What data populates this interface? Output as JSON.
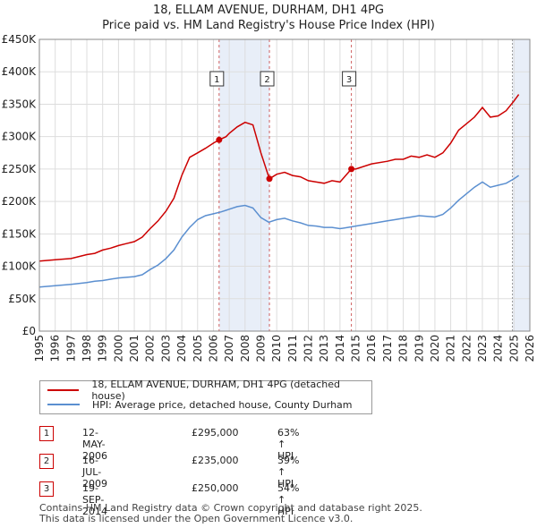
{
  "title": {
    "line1": "18, ELLAM AVENUE, DURHAM, DH1 4PG",
    "line2": "Price paid vs. HM Land Registry's House Price Index (HPI)"
  },
  "colors": {
    "property_line": "#cc0000",
    "hpi_line": "#5b8fd0",
    "shade": "#e8eef8",
    "vline": "#d06060",
    "grid": "#dddddd"
  },
  "chart_data": {
    "type": "line",
    "xlim": [
      1995,
      2026
    ],
    "ylim": [
      0,
      450000
    ],
    "x_ticks": [
      1995,
      1996,
      1997,
      1998,
      1999,
      2000,
      2001,
      2002,
      2003,
      2004,
      2005,
      2006,
      2007,
      2008,
      2009,
      2010,
      2011,
      2012,
      2013,
      2014,
      2015,
      2016,
      2017,
      2018,
      2019,
      2020,
      2021,
      2022,
      2023,
      2024,
      2025,
      2026
    ],
    "y_ticks": [
      0,
      50000,
      100000,
      150000,
      200000,
      250000,
      300000,
      350000,
      400000,
      450000
    ],
    "y_tick_labels": [
      "£0",
      "£50K",
      "£100K",
      "£150K",
      "£200K",
      "£250K",
      "£300K",
      "£350K",
      "£400K",
      "£450K"
    ],
    "series": [
      {
        "name": "18, ELLAM AVENUE, DURHAM, DH1 4PG (detached house)",
        "color": "#cc0000",
        "x": [
          1995,
          1996,
          1997,
          1998,
          1998.5,
          1999,
          1999.5,
          2000,
          2000.5,
          2001,
          2001.5,
          2002,
          2002.5,
          2003,
          2003.5,
          2004,
          2004.5,
          2005,
          2005.5,
          2006,
          2006.36,
          2006.8,
          2007,
          2007.5,
          2008,
          2008.5,
          2009,
          2009.54,
          2010,
          2010.5,
          2011,
          2011.5,
          2012,
          2012.5,
          2013,
          2013.5,
          2014,
          2014.72,
          2015,
          2016,
          2017,
          2017.5,
          2018,
          2018.5,
          2019,
          2019.5,
          2020,
          2020.5,
          2021,
          2021.5,
          2022,
          2022.5,
          2023,
          2023.5,
          2024,
          2024.5,
          2025,
          2025.3
        ],
        "values": [
          108000,
          110000,
          112000,
          118000,
          120000,
          125000,
          128000,
          132000,
          135000,
          138000,
          145000,
          158000,
          170000,
          185000,
          205000,
          240000,
          268000,
          275000,
          282000,
          290000,
          295000,
          300000,
          305000,
          315000,
          322000,
          318000,
          275000,
          235000,
          242000,
          245000,
          240000,
          238000,
          232000,
          230000,
          228000,
          232000,
          230000,
          250000,
          250000,
          258000,
          262000,
          265000,
          265000,
          270000,
          268000,
          272000,
          268000,
          275000,
          290000,
          310000,
          320000,
          330000,
          345000,
          330000,
          332000,
          340000,
          355000,
          365000
        ]
      },
      {
        "name": "HPI: Average price, detached house, County Durham",
        "color": "#5b8fd0",
        "x": [
          1995,
          1996,
          1997,
          1998,
          1998.5,
          1999,
          1999.5,
          2000,
          2000.5,
          2001,
          2001.5,
          2002,
          2002.5,
          2003,
          2003.5,
          2004,
          2004.5,
          2005,
          2005.5,
          2006,
          2006.5,
          2007,
          2007.5,
          2008,
          2008.5,
          2009,
          2009.5,
          2010,
          2010.5,
          2011,
          2011.5,
          2012,
          2012.5,
          2013,
          2013.5,
          2014,
          2014.5,
          2015,
          2016,
          2017,
          2017.5,
          2018,
          2018.5,
          2019,
          2019.5,
          2020,
          2020.5,
          2021,
          2021.5,
          2022,
          2022.5,
          2023,
          2023.5,
          2024,
          2024.5,
          2025,
          2025.3
        ],
        "values": [
          68000,
          70000,
          72000,
          75000,
          77000,
          78000,
          80000,
          82000,
          83000,
          84000,
          87000,
          95000,
          102000,
          112000,
          125000,
          145000,
          160000,
          172000,
          178000,
          181000,
          184000,
          188000,
          192000,
          194000,
          190000,
          175000,
          168000,
          172000,
          174000,
          170000,
          167000,
          163000,
          162000,
          160000,
          160000,
          158000,
          160000,
          162000,
          166000,
          170000,
          172000,
          174000,
          176000,
          178000,
          177000,
          176000,
          180000,
          190000,
          202000,
          212000,
          222000,
          230000,
          222000,
          225000,
          228000,
          235000,
          240000
        ]
      }
    ],
    "shaded_ranges": [
      [
        2006.36,
        2009.54
      ],
      [
        2024.9,
        2026
      ]
    ],
    "sales": [
      {
        "num": "1",
        "x": 2006.36,
        "price": 295000,
        "date": "12-MAY-2006",
        "price_label": "£295,000",
        "hpi_label": "63% ↑ HPI"
      },
      {
        "num": "2",
        "x": 2009.54,
        "price": 235000,
        "date": "16-JUL-2009",
        "price_label": "£235,000",
        "hpi_label": "39% ↑ HPI"
      },
      {
        "num": "3",
        "x": 2014.72,
        "price": 250000,
        "date": "19-SEP-2014",
        "price_label": "£250,000",
        "hpi_label": "54% ↑ HPI"
      }
    ]
  },
  "legend": {
    "property": "18, ELLAM AVENUE, DURHAM, DH1 4PG (detached house)",
    "hpi": "HPI: Average price, detached house, County Durham"
  },
  "footer": {
    "line1": "Contains HM Land Registry data © Crown copyright and database right 2025.",
    "line2": "This data is licensed under the Open Government Licence v3.0."
  }
}
